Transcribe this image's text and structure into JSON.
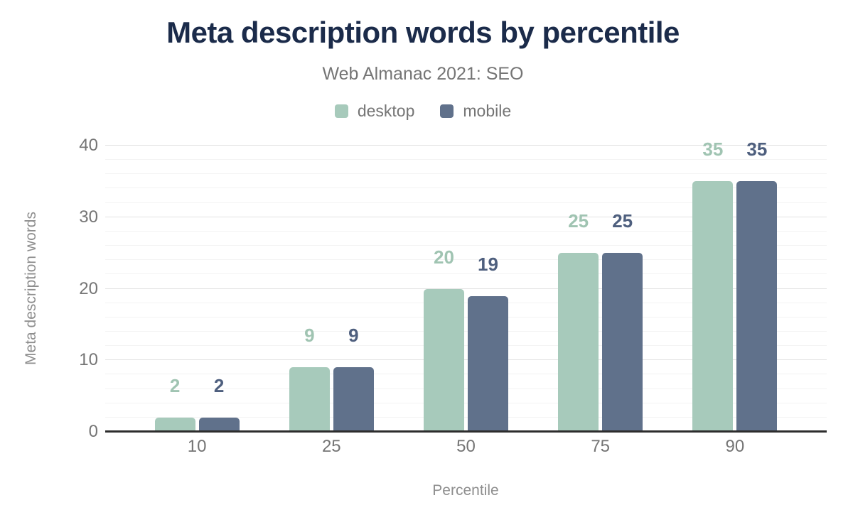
{
  "chart_data": {
    "type": "bar",
    "title": "Meta description words by percentile",
    "subtitle": "Web Almanac 2021: SEO",
    "categories": [
      "10",
      "25",
      "50",
      "75",
      "90"
    ],
    "series": [
      {
        "name": "desktop",
        "color": "#a7cabb",
        "label_color": "#a0c4b2",
        "values": [
          2,
          9,
          20,
          25,
          35
        ]
      },
      {
        "name": "mobile",
        "color": "#60718b",
        "label_color": "#4e5f7e",
        "values": [
          2,
          9,
          19,
          25,
          35
        ]
      }
    ],
    "xlabel": "Percentile",
    "ylabel": "Meta description words",
    "ylim": [
      0,
      40
    ],
    "yticks": [
      0,
      10,
      20,
      30,
      40
    ],
    "minor_grid_step": 2,
    "grid": true,
    "legend_position": "top-center",
    "data_labels": true,
    "colors": {
      "title": "#1b2b4a",
      "subtitle": "#757575",
      "tick_labels": "#757575",
      "axis_titles": "#8e8e8e",
      "axis_line": "#2d2d2d",
      "background": "#ffffff"
    }
  }
}
